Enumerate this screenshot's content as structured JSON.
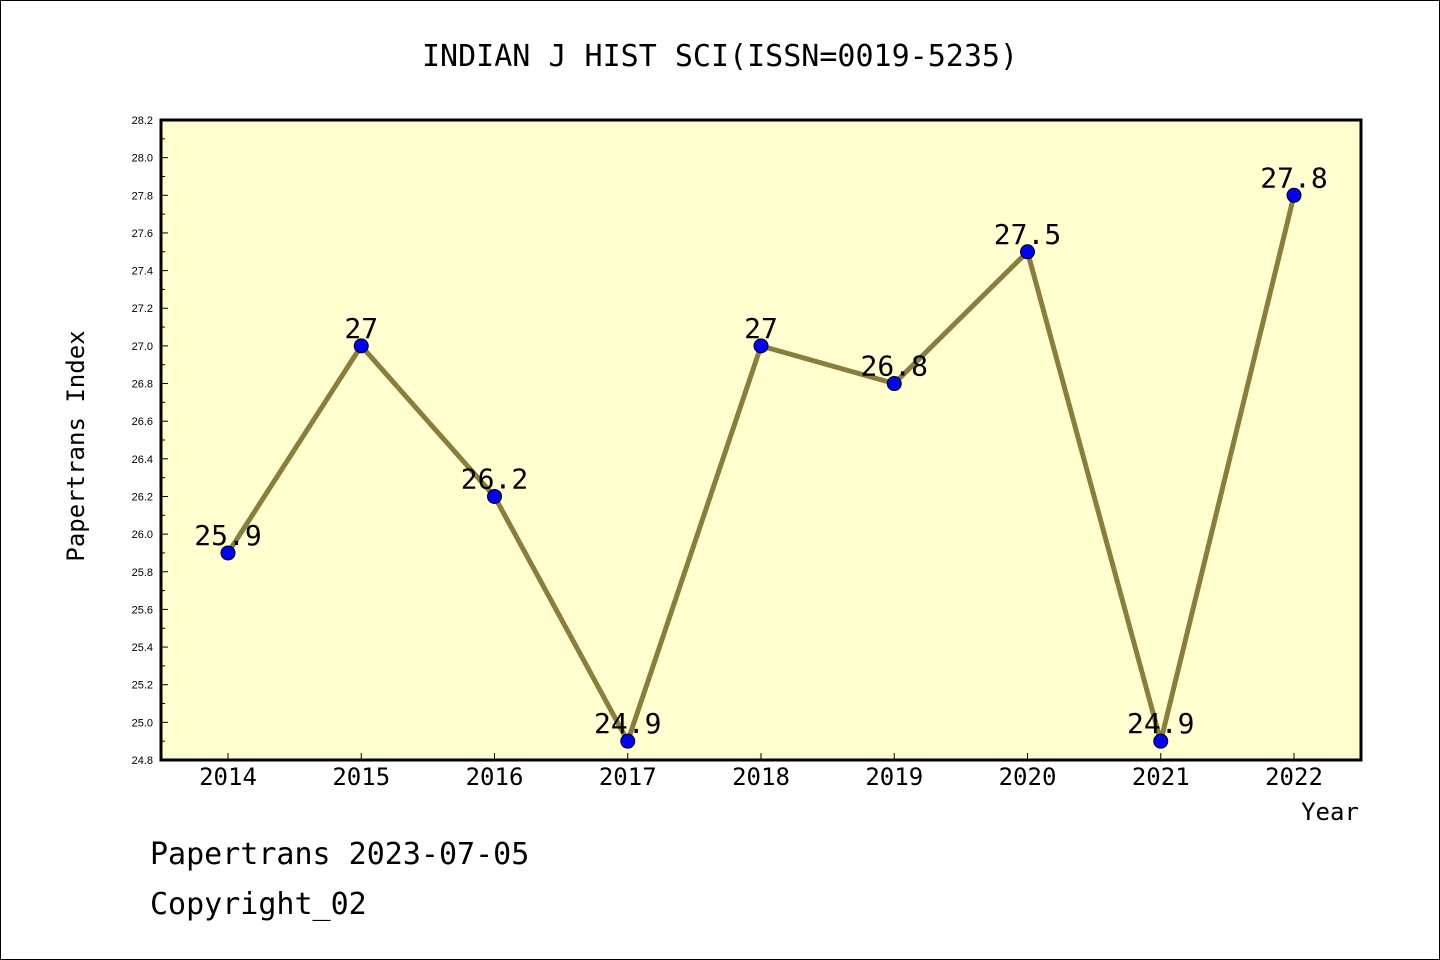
{
  "chart_data": {
    "type": "line",
    "title": "INDIAN J HIST SCI(ISSN=0019-5235)",
    "xlabel": "Year",
    "ylabel": "Papertrans Index",
    "categories": [
      "2014",
      "2015",
      "2016",
      "2017",
      "2018",
      "2019",
      "2020",
      "2021",
      "2022"
    ],
    "series": [
      {
        "values": [
          25.9,
          27,
          26.2,
          24.9,
          27,
          26.8,
          27.5,
          24.9,
          27.8
        ],
        "labels": [
          "25.9",
          "27",
          "26.2",
          "24.9",
          "27",
          "26.8",
          "27.5",
          "24.9",
          "27.8"
        ]
      }
    ],
    "ylim": [
      24.8,
      28.2
    ],
    "yticks": [
      "24.8",
      "25.0",
      "25.2",
      "25.4",
      "25.6",
      "25.8",
      "26.0",
      "26.2",
      "26.4",
      "26.6",
      "26.8",
      "27.0",
      "27.2",
      "27.4",
      "27.6",
      "27.8",
      "28.0",
      "28.2"
    ],
    "plot_background": "#ffffd0",
    "line_color": "#8b7d3a",
    "marker_color": "#0000ff",
    "grid": false,
    "legend": "none"
  },
  "footer": {
    "line1": "Papertrans 2023-07-05",
    "line2": "Copyright_02"
  }
}
